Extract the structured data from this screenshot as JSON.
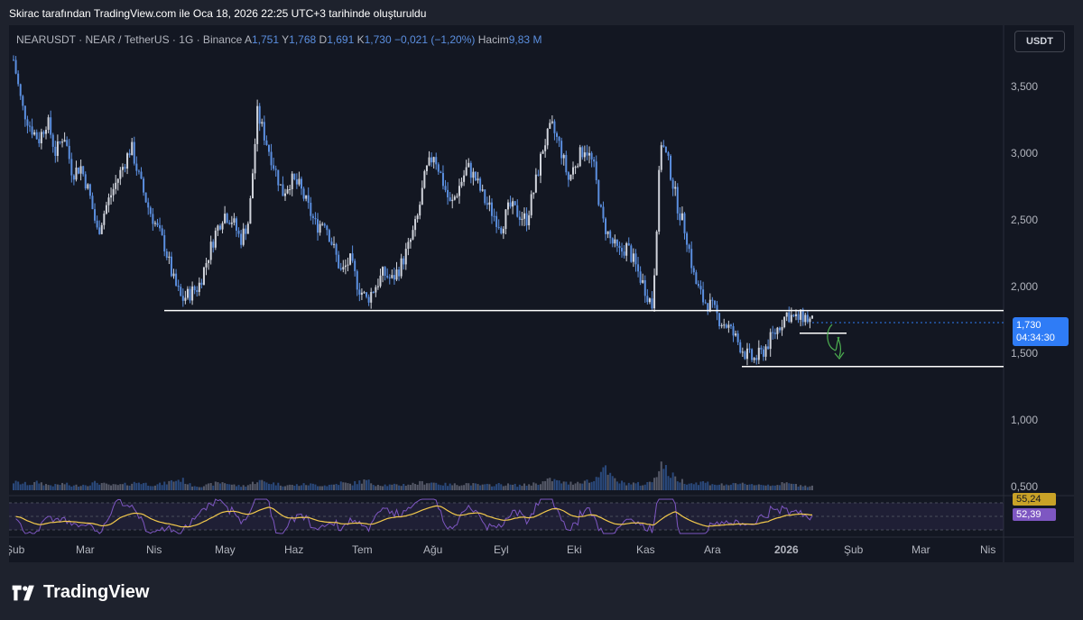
{
  "caption": "Skirac tarafından TradingView.com ile Oca 18, 2026 22:25 UTC+3 tarihinde oluşturuldu",
  "legend": {
    "symbol": "NEARUSDT · NEAR / TetherUS · 1G · Binance",
    "o_label": "A",
    "o_value": "1,751",
    "h_label": "Y",
    "h_value": "1,768",
    "l_label": "D",
    "l_value": "1,691",
    "c_label": "K",
    "c_value": "1,730",
    "change": "−0,021 (−1,20%)",
    "vol_label": "Hacim",
    "vol_value": "9,83 M"
  },
  "currency_button": "USDT",
  "last_price": {
    "price": "1,730",
    "countdown": "04:34:30"
  },
  "rsi_tags": {
    "ma": "55,24",
    "rsi": "52,39"
  },
  "brand": {
    "name": "TradingView",
    "logo_icon": "tradingview-logo-icon"
  },
  "colors": {
    "up": "#d1d4dc",
    "down": "#5b8fe0",
    "rsi": "#7e57c2",
    "rsi_ma": "#f2c94c",
    "accent": "#2f7cf6"
  },
  "chart_data": {
    "type": "candlestick",
    "title": "NEARUSDT · NEAR / TetherUS · 1G · Binance",
    "yaxis": {
      "ticks": [
        "3,500",
        "3,000",
        "2,500",
        "2,000",
        "1,500",
        "1,000",
        "0,500"
      ],
      "tick_values": [
        3.5,
        3.0,
        2.5,
        2.0,
        1.5,
        1.0,
        0.5
      ],
      "ylim": [
        0.5,
        3.8
      ]
    },
    "xaxis": {
      "ticks": [
        "Şub",
        "Mar",
        "Nis",
        "May",
        "Haz",
        "Tem",
        "Ağu",
        "Eyl",
        "Eki",
        "Kas",
        "Ara",
        "2026",
        "Şub",
        "Mar",
        "Nis"
      ]
    },
    "close_path": [
      3.7,
      3.35,
      3.2,
      3.1,
      3.25,
      3.0,
      3.15,
      2.85,
      2.9,
      2.7,
      2.4,
      2.6,
      2.75,
      2.9,
      3.05,
      2.8,
      2.6,
      2.45,
      2.3,
      2.05,
      1.9,
      1.95,
      2.0,
      2.2,
      2.4,
      2.55,
      2.5,
      2.35,
      2.5,
      3.3,
      3.1,
      2.9,
      2.7,
      2.8,
      2.75,
      2.6,
      2.45,
      2.5,
      2.3,
      2.1,
      2.2,
      2.0,
      1.9,
      2.0,
      2.1,
      2.05,
      2.15,
      2.3,
      2.5,
      2.85,
      3.0,
      2.8,
      2.6,
      2.75,
      2.9,
      2.8,
      2.65,
      2.55,
      2.45,
      2.6,
      2.55,
      2.5,
      2.75,
      3.05,
      3.2,
      3.05,
      2.8,
      2.95,
      3.05,
      2.9,
      2.5,
      2.35,
      2.25,
      2.3,
      2.15,
      2.0,
      1.85,
      3.1,
      2.9,
      2.6,
      2.4,
      2.05,
      1.9,
      1.85,
      1.75,
      1.7,
      1.6,
      1.5,
      1.45,
      1.5,
      1.6,
      1.7,
      1.8,
      1.75,
      1.78,
      1.73
    ],
    "volume_path": [
      0.3,
      0.25,
      0.22,
      0.3,
      0.2,
      0.18,
      0.25,
      0.15,
      0.2,
      0.22,
      0.3,
      0.2,
      0.18,
      0.2,
      0.25,
      0.3,
      0.22,
      0.2,
      0.25,
      0.35,
      0.4,
      0.2,
      0.15,
      0.18,
      0.25,
      0.3,
      0.2,
      0.15,
      0.2,
      0.35,
      0.3,
      0.25,
      0.2,
      0.18,
      0.2,
      0.22,
      0.2,
      0.18,
      0.2,
      0.28,
      0.22,
      0.3,
      0.35,
      0.22,
      0.2,
      0.18,
      0.2,
      0.22,
      0.25,
      0.3,
      0.28,
      0.22,
      0.2,
      0.22,
      0.25,
      0.2,
      0.18,
      0.2,
      0.22,
      0.2,
      0.18,
      0.2,
      0.25,
      0.3,
      0.4,
      0.3,
      0.25,
      0.3,
      0.35,
      0.3,
      0.9,
      0.5,
      0.3,
      0.25,
      0.25,
      0.2,
      0.35,
      1.0,
      0.6,
      0.4,
      0.3,
      0.25,
      0.3,
      0.25,
      0.2,
      0.22,
      0.2,
      0.25,
      0.22,
      0.2,
      0.2,
      0.22,
      0.25,
      0.2,
      0.18,
      0.15
    ],
    "horizontal_levels": [
      {
        "y": 1.82,
        "from_month": "Nis"
      },
      {
        "y": 1.4,
        "from_month": "Ara"
      }
    ],
    "short_level": {
      "y": 1.65
    },
    "annotation": {
      "type": "arrow-sketch",
      "color": "#4caf50"
    },
    "rsi": {
      "ma_value": 55.24,
      "rsi_value": 52.39
    }
  }
}
